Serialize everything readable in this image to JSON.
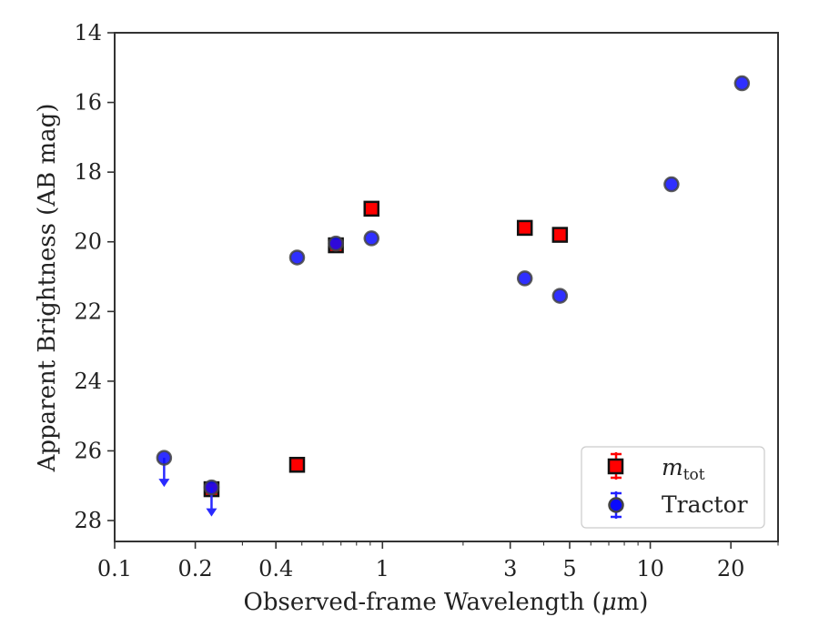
{
  "chart_data": {
    "type": "scatter",
    "title": "",
    "xlabel_prefix": "Observed-frame Wavelength (",
    "xlabel_unit_symbol": "μ",
    "xlabel_suffix": "m)",
    "ylabel": "Apparent Brightness (AB mag)",
    "x_scale": "log",
    "y_inverted": true,
    "xlim": [
      0.1,
      30
    ],
    "ylim": [
      28.6,
      14
    ],
    "x_ticks": [
      {
        "value": 0.1,
        "label": "0.1"
      },
      {
        "value": 0.2,
        "label": "0.2"
      },
      {
        "value": 0.4,
        "label": "0.4"
      },
      {
        "value": 1,
        "label": "1"
      },
      {
        "value": 3,
        "label": "3"
      },
      {
        "value": 5,
        "label": "5"
      },
      {
        "value": 10,
        "label": "10"
      },
      {
        "value": 20,
        "label": "20"
      }
    ],
    "y_ticks": [
      {
        "value": 14,
        "label": "14"
      },
      {
        "value": 16,
        "label": "16"
      },
      {
        "value": 18,
        "label": "18"
      },
      {
        "value": 20,
        "label": "20"
      },
      {
        "value": 22,
        "label": "22"
      },
      {
        "value": 24,
        "label": "24"
      },
      {
        "value": 26,
        "label": "26"
      },
      {
        "value": 28,
        "label": "28"
      }
    ],
    "grid": false,
    "legend_position": "lower-right",
    "series": [
      {
        "name_main": "m",
        "name_sub": "tot",
        "marker": "square",
        "color": "#ff0000",
        "edge_color": "#111111",
        "points": [
          {
            "x": 0.23,
            "y": 27.1
          },
          {
            "x": 0.48,
            "y": 26.4
          },
          {
            "x": 0.67,
            "y": 20.1
          },
          {
            "x": 0.91,
            "y": 19.05
          },
          {
            "x": 3.4,
            "y": 19.6
          },
          {
            "x": 4.6,
            "y": 19.8
          }
        ]
      },
      {
        "name": "Tractor",
        "marker": "circle",
        "color": "#0a0aff",
        "edge_color": "#444444",
        "points": [
          {
            "x": 0.153,
            "y": 26.2,
            "upper_limit": true
          },
          {
            "x": 0.23,
            "y": 27.05,
            "upper_limit": true
          },
          {
            "x": 0.48,
            "y": 20.45
          },
          {
            "x": 0.67,
            "y": 20.05
          },
          {
            "x": 0.91,
            "y": 19.9
          },
          {
            "x": 3.4,
            "y": 21.05
          },
          {
            "x": 4.6,
            "y": 21.55
          },
          {
            "x": 12.0,
            "y": 18.35
          },
          {
            "x": 22.0,
            "y": 15.45
          }
        ]
      }
    ]
  }
}
